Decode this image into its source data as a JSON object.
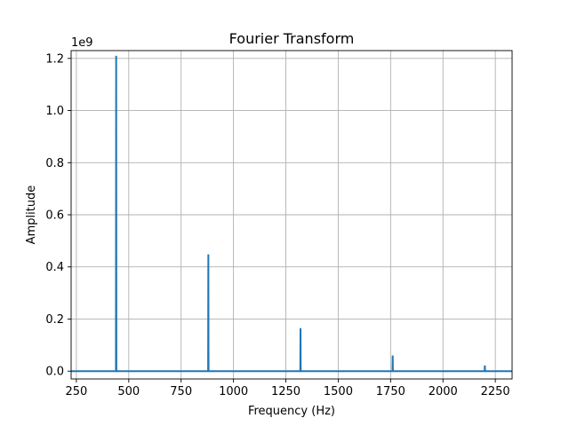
{
  "chart_data": {
    "type": "line",
    "title": "Fourier Transform",
    "xlabel": "Frequency (Hz)",
    "ylabel": "Amplitude",
    "y_offset_label": "1e9",
    "y_scale": 1000000000,
    "xlim": [
      225,
      2330
    ],
    "ylim": [
      -30000000,
      1230000000
    ],
    "xticks": [
      250,
      500,
      750,
      1000,
      1250,
      1500,
      1750,
      2000,
      2250
    ],
    "xtick_labels": [
      "250",
      "500",
      "750",
      "1000",
      "1250",
      "1500",
      "1750",
      "2000",
      "2250"
    ],
    "yticks": [
      0,
      200000000,
      400000000,
      600000000,
      800000000,
      1000000000,
      1200000000
    ],
    "ytick_labels": [
      "0.0",
      "0.2",
      "0.4",
      "0.6",
      "0.8",
      "1.0",
      "1.2"
    ],
    "grid": true,
    "legend": "none",
    "series": [
      {
        "color": "#1f77b4",
        "x": [
          225,
          439,
          440,
          441,
          879,
          880,
          881,
          1319,
          1320,
          1321,
          1759,
          1760,
          1761,
          2199,
          2200,
          2201,
          2330
        ],
        "y": [
          0,
          0,
          1210000000,
          0,
          0,
          448000000,
          0,
          0,
          165000000,
          0,
          0,
          60000000,
          0,
          0,
          22000000,
          0,
          0
        ]
      }
    ]
  }
}
